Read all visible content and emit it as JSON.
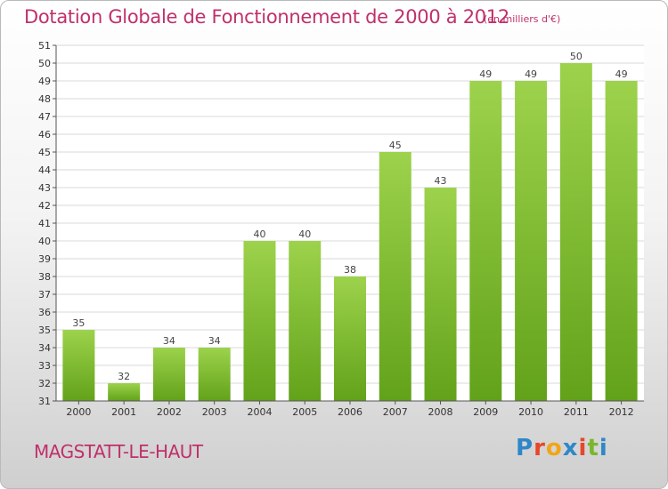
{
  "title": "Dotation Globale de Fonctionnement de 2000 à 2012",
  "subtitle": "(en milliers d'€)",
  "commune": "MAGSTATT-LE-HAUT",
  "logo": {
    "text": "Proxiti",
    "colors": [
      "#2e87c8",
      "#e8462a",
      "#f2a516",
      "#2e87c8",
      "#e8462a",
      "#7ab62c"
    ]
  },
  "colors": {
    "title": "#c0306b",
    "bar_top": "#9dd24c",
    "bar_bottom": "#62a21a"
  },
  "chart_data": {
    "type": "bar",
    "title": "Dotation Globale de Fonctionnement de 2000 à 2012",
    "subtitle": "(en milliers d'€)",
    "xlabel": "",
    "ylabel": "",
    "categories": [
      "2000",
      "2001",
      "2002",
      "2003",
      "2004",
      "2005",
      "2006",
      "2007",
      "2008",
      "2009",
      "2010",
      "2011",
      "2012"
    ],
    "values": [
      35,
      32,
      34,
      34,
      40,
      40,
      38,
      45,
      43,
      49,
      49,
      50,
      49
    ],
    "ylim": [
      31,
      51
    ],
    "yticks": [
      31,
      32,
      33,
      34,
      35,
      36,
      37,
      38,
      39,
      40,
      41,
      42,
      43,
      44,
      45,
      46,
      47,
      48,
      49,
      50,
      51
    ],
    "grid": true
  }
}
